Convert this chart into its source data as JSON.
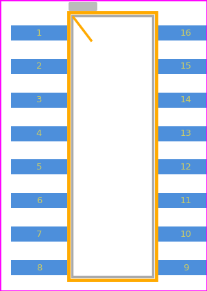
{
  "bg_color": "#ffffff",
  "border_color": "#ff00ff",
  "body_fill": "#ffffff",
  "body_stroke": "#aaaaaa",
  "pad_color": "#4d8fdb",
  "pad_text_color": "#cccc66",
  "outline_color": "#ffaa00",
  "n_pins_per_side": 8,
  "left_pins": [
    1,
    2,
    3,
    4,
    5,
    6,
    7,
    8
  ],
  "right_pins": [
    16,
    15,
    14,
    13,
    12,
    11,
    10,
    9
  ],
  "fig_width": 3.02,
  "fig_height": 4.24
}
